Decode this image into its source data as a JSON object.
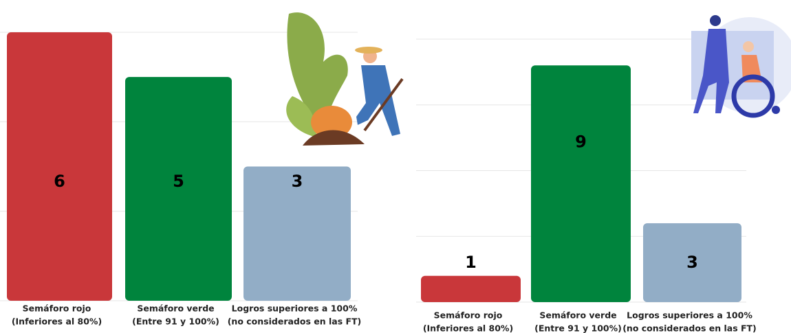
{
  "chart_data": [
    {
      "type": "bar",
      "categories": [
        [
          "Semáforo rojo",
          "(Inferiores al 80%)"
        ],
        [
          "Semáforo verde",
          "(Entre 91 y 100%)"
        ],
        [
          "Logros superiores a 100%",
          "(no considerados en las FT)"
        ]
      ],
      "values": [
        6,
        5,
        3
      ],
      "colors": [
        "#c9373a",
        "#00843d",
        "#92adc6"
      ],
      "ylim": [
        0,
        6
      ],
      "yticks": [
        0,
        2,
        4,
        6
      ],
      "grid": true
    },
    {
      "type": "bar",
      "categories": [
        [
          "Semáforo rojo",
          "(Inferiores al 80%)"
        ],
        [
          "Semáforo verde",
          "(Entre 91 y 100%)"
        ],
        [
          "Logros superiores a 100%",
          "(no considerados en las FT)"
        ]
      ],
      "values": [
        1,
        9,
        3
      ],
      "colors": [
        "#c9373a",
        "#00843d",
        "#92adc6"
      ],
      "ylim": [
        0,
        10
      ],
      "yticks": [
        0,
        2.5,
        5,
        7.5,
        10
      ],
      "grid": true
    }
  ]
}
